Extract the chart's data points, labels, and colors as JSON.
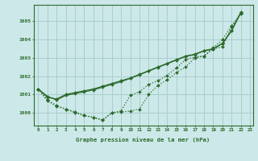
{
  "xlabel": "Graphe pression niveau de la mer (hPa)",
  "bg_color": "#cce8e8",
  "grid_color": "#aacece",
  "line_color": "#2d6b2d",
  "xlim": [
    -0.5,
    23.3
  ],
  "ylim": [
    999.3,
    1005.9
  ],
  "yticks": [
    1000,
    1001,
    1002,
    1003,
    1004,
    1005
  ],
  "xticks": [
    0,
    1,
    2,
    3,
    4,
    5,
    6,
    7,
    8,
    9,
    10,
    11,
    12,
    13,
    14,
    15,
    16,
    17,
    18,
    19,
    20,
    21,
    22,
    23
  ],
  "series_solid_1": [
    1001.3,
    1000.85,
    1000.75,
    1001.0,
    1001.1,
    1001.2,
    1001.3,
    1001.45,
    1001.6,
    1001.75,
    1001.9,
    1002.1,
    1002.3,
    1002.5,
    1002.7,
    1002.9,
    1003.1,
    1003.2,
    1003.4,
    1003.5,
    1003.8,
    1004.5,
    1005.5
  ],
  "series_solid_2": [
    1001.3,
    1000.9,
    1000.7,
    1000.95,
    1001.05,
    1001.15,
    1001.25,
    1001.4,
    1001.55,
    1001.7,
    1001.88,
    1002.08,
    1002.28,
    1002.48,
    1002.68,
    1002.88,
    1003.08,
    1003.18,
    1003.38,
    1003.48,
    1003.78,
    1004.48,
    1005.48
  ],
  "series_dotted_1": [
    1001.3,
    1000.7,
    1000.4,
    1000.2,
    1000.0,
    999.85,
    999.75,
    999.6,
    1000.0,
    1000.05,
    1000.1,
    1000.2,
    1001.0,
    1001.5,
    1001.8,
    1002.2,
    1002.5,
    1003.0,
    1003.1,
    1003.5,
    1003.6,
    1004.7,
    1005.4
  ],
  "series_dotted_2": [
    1001.3,
    1000.65,
    1000.35,
    1000.2,
    1000.05,
    999.85,
    999.75,
    999.6,
    1000.0,
    1000.1,
    1000.95,
    1001.15,
    1001.55,
    1001.75,
    1002.05,
    1002.45,
    1002.9,
    1003.05,
    1003.1,
    1003.55,
    1004.0,
    1004.75,
    1005.45
  ]
}
